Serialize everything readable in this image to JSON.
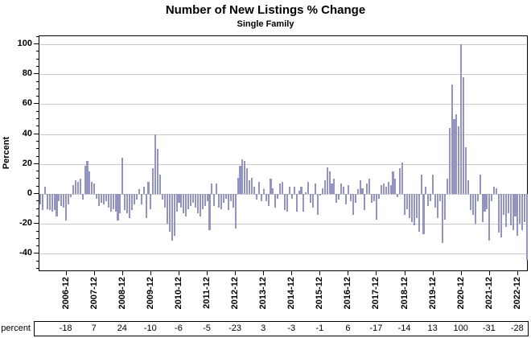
{
  "header": {
    "title": "Number of New Listings % Change",
    "subtitle": "Single Family"
  },
  "chart_data": {
    "type": "bar",
    "title": "Number of New Listings % Change",
    "subtitle": "Single Family",
    "ylabel": "Percent",
    "xlabel": "",
    "ylim": [
      -52,
      105
    ],
    "yticks": [
      -40,
      -20,
      0,
      20,
      40,
      60,
      80,
      100
    ],
    "minor_tick_step": 5,
    "grid": true,
    "legend": "none",
    "bar_color": "#9394bf",
    "gridline_color": "#c9c9c9",
    "start_month": "2006-01",
    "end_month": "2023-04",
    "x_tick_labels": [
      "2006-12",
      "2007-12",
      "2008-12",
      "2009-12",
      "2010-12",
      "2011-12",
      "2012-12",
      "2013-12",
      "2014-12",
      "2015-12",
      "2016-12",
      "2017-12",
      "2018-12",
      "2019-12",
      "2020-12",
      "2021-12",
      "2022-12"
    ],
    "values": [
      -7,
      -11,
      5,
      -10,
      -11,
      -12,
      -11,
      -15,
      -5,
      -8,
      -9,
      -18,
      -7,
      -2,
      6,
      9,
      8,
      10,
      -4,
      19,
      22,
      15,
      8,
      7,
      -3,
      -8,
      -6,
      -7,
      -5,
      -9,
      -12,
      -10,
      -12,
      -18,
      -13,
      24,
      -11,
      -13,
      -16,
      -11,
      -7,
      -4,
      3,
      -7,
      5,
      -16,
      8,
      -10,
      17,
      40,
      30,
      13,
      -4,
      -9,
      -20,
      -25,
      -31,
      -28,
      -12,
      -6,
      -9,
      -13,
      -15,
      -10,
      -8,
      -6,
      -9,
      -13,
      -15,
      -10,
      -8,
      -5,
      -24,
      7,
      -8,
      7,
      -9,
      -10,
      -6,
      -3,
      -11,
      -5,
      -9,
      -23,
      11,
      19,
      23,
      22,
      17,
      9,
      11,
      5,
      -4,
      8,
      -5,
      3,
      -5,
      -8,
      10,
      4,
      -9,
      -3,
      7,
      8,
      -11,
      -12,
      5,
      -3,
      5,
      -12,
      2,
      5,
      -12,
      1,
      8,
      -6,
      -9,
      7,
      -14,
      -1,
      4,
      9,
      18,
      15,
      7,
      10,
      -6,
      -4,
      7,
      5,
      -7,
      6,
      -5,
      -14,
      -6,
      3,
      9,
      4,
      -11,
      7,
      10,
      -6,
      -5,
      -17,
      -3,
      6,
      7,
      5,
      8,
      6,
      15,
      10,
      -2,
      17,
      21,
      -14,
      -10,
      -16,
      -19,
      -21,
      -16,
      -25,
      13,
      -27,
      5,
      -8,
      -5,
      13,
      -9,
      -16,
      -5,
      -33,
      -17,
      10,
      44,
      73,
      50,
      53,
      45,
      100,
      78,
      31,
      9,
      -11,
      -14,
      -20,
      -5,
      13,
      -19,
      -12,
      -10,
      -31,
      -5,
      5,
      4,
      -26,
      -29,
      -14,
      -22,
      -13,
      -21,
      -24,
      -15,
      -28,
      -20,
      -24,
      -19,
      -44
    ]
  },
  "summary_table": {
    "row_label": "percent",
    "columns": [
      "2006-12",
      "2007-12",
      "2008-12",
      "2009-12",
      "2010-12",
      "2011-12",
      "2012-12",
      "2013-12",
      "2014-12",
      "2015-12",
      "2016-12",
      "2017-12",
      "2018-12",
      "2019-12",
      "2020-12",
      "2021-12",
      "2022-12"
    ],
    "values": [
      -18,
      7,
      24,
      -10,
      -6,
      -5,
      -23,
      3,
      -3,
      -1,
      6,
      -17,
      -14,
      13,
      100,
      -31,
      -28
    ]
  }
}
